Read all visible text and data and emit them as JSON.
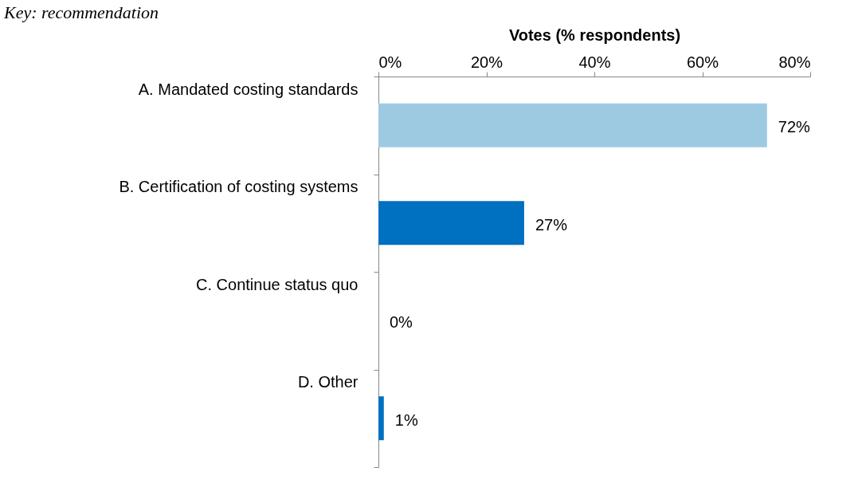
{
  "chart_data": {
    "type": "bar",
    "orientation": "horizontal",
    "xlabel": "Votes (% respondents)",
    "categories": [
      "A. Mandated costing standards",
      "B. Certification of costing systems",
      "C. Continue status quo",
      "D. Other"
    ],
    "values": [
      72,
      27,
      0,
      1
    ],
    "colors": [
      "#9ecae1",
      "#0070c0",
      "#0070c0",
      "#0070c0"
    ],
    "value_labels": [
      "72%",
      "27%",
      "0%",
      "1%"
    ],
    "xlim": [
      0,
      80
    ],
    "xticks": [
      {
        "value": 0,
        "label": "0%"
      },
      {
        "value": 20,
        "label": "20%"
      },
      {
        "value": 40,
        "label": "40%"
      },
      {
        "value": 60,
        "label": "60%"
      },
      {
        "value": 80,
        "label": "80%"
      }
    ],
    "annotations": [
      "Key: recommendation"
    ],
    "grid": false
  }
}
